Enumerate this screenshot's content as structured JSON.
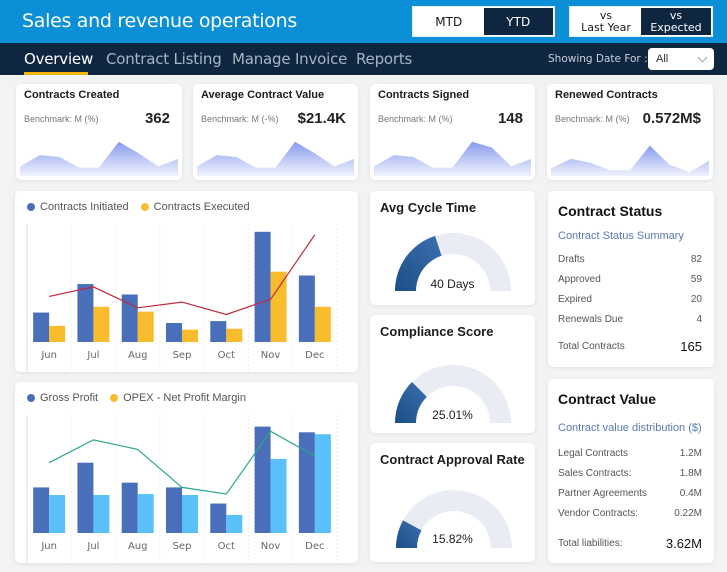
{
  "header": {
    "title": "Sales and revenue operations",
    "period_toggle": [
      {
        "label": "MTD",
        "active": false
      },
      {
        "label": "YTD",
        "active": true
      }
    ],
    "compare_toggle": [
      {
        "label": "vs\nLast Year",
        "active": false
      },
      {
        "label": "vs\nExpected",
        "active": true
      }
    ]
  },
  "nav": {
    "tabs": [
      {
        "label": "Overview",
        "active": true
      },
      {
        "label": "Contract Listing",
        "active": false
      },
      {
        "label": "Manage Invoice",
        "active": false
      },
      {
        "label": "Reports",
        "active": false
      }
    ],
    "date_label": "Showing Date For :",
    "date_select": "All"
  },
  "kpis": [
    {
      "title": "Contracts Created",
      "benchmark": "Benchmark: M (%)",
      "value": "362"
    },
    {
      "title": "Average Contract Value",
      "benchmark": "Benchmark: M (-%)",
      "value": "$21.4K"
    },
    {
      "title": "Contracts Signed",
      "benchmark": "Benchmark: M (%)",
      "value": "148"
    },
    {
      "title": "Renewed Contracts",
      "benchmark": "Benchmark: M (%)",
      "value": "0.572M$"
    }
  ],
  "sparklines": [
    [
      0.25,
      0.55,
      0.5,
      0.22,
      0.22,
      0.9,
      0.6,
      0.25,
      0.45
    ],
    [
      0.25,
      0.55,
      0.5,
      0.22,
      0.22,
      0.9,
      0.6,
      0.25,
      0.45
    ],
    [
      0.25,
      0.55,
      0.5,
      0.22,
      0.22,
      0.9,
      0.75,
      0.25,
      0.45
    ],
    [
      0.2,
      0.45,
      0.35,
      0.15,
      0.15,
      0.8,
      0.3,
      0.1,
      0.4
    ]
  ],
  "chart_data": [
    {
      "type": "bar",
      "title": "",
      "categories": [
        "Jun",
        "Jul",
        "Aug",
        "Sep",
        "Oct",
        "Nov",
        "Dec"
      ],
      "series": [
        {
          "name": "Contracts Initiated",
          "kind": "bar",
          "color": "#4a6fba",
          "values": [
            31,
            61,
            50,
            20,
            22,
            116,
            70
          ]
        },
        {
          "name": "Contracts Executed",
          "kind": "bar",
          "color": "#f9bc2c",
          "values": [
            17,
            37,
            32,
            13,
            14,
            74,
            37
          ]
        },
        {
          "name": "",
          "kind": "line",
          "color": "#c0283a",
          "values": [
            48,
            58,
            36,
            42,
            29,
            45,
            113
          ]
        }
      ],
      "xlabel": "",
      "ylabel": "",
      "ylim": [
        0,
        120
      ],
      "grid": "vertical",
      "legend": "top-left"
    },
    {
      "type": "bar",
      "title": "",
      "categories": [
        "Jun",
        "Jul",
        "Aug",
        "Sep",
        "Oct",
        "Nov",
        "Dec"
      ],
      "series": [
        {
          "name": "Gross Profit",
          "kind": "bar",
          "color": "#4a6fba",
          "values": [
            48,
            74,
            53,
            48,
            31,
            112,
            106
          ]
        },
        {
          "name": "OPEX - Net Profit Margin",
          "kind": "bar",
          "color": "#5bc0fa",
          "legend_color": "#f9bc2c",
          "values": [
            40,
            40,
            41,
            40,
            19,
            78,
            104
          ]
        },
        {
          "name": "",
          "kind": "line",
          "color": "#2aa88a",
          "values": [
            74,
            98,
            88,
            48,
            41,
            107,
            81
          ]
        }
      ],
      "xlabel": "",
      "ylabel": "",
      "ylim": [
        0,
        120
      ],
      "grid": "vertical",
      "legend": "top-left"
    }
  ],
  "gauges": [
    {
      "title": "Avg Cycle Time",
      "value_label": "40 Days",
      "fraction": 0.4
    },
    {
      "title": "Compliance Score",
      "value_label": "25.01%",
      "fraction": 0.2501
    },
    {
      "title": "Contract Approval Rate",
      "value_label": "15.82%",
      "fraction": 0.1582
    }
  ],
  "contract_status": {
    "title": "Contract Status",
    "subtitle": "Contract Status Summary",
    "rows": [
      {
        "label": "Drafts",
        "value": "82"
      },
      {
        "label": "Approved",
        "value": "59"
      },
      {
        "label": "Expired",
        "value": "20"
      },
      {
        "label": "Renewals Due",
        "value": "4"
      }
    ],
    "total_label": "Total Contracts",
    "total_value": "165"
  },
  "contract_value": {
    "title": "Contract Value",
    "subtitle": "Contract value distribution ($)",
    "rows": [
      {
        "label": "Legal Contracts",
        "value": "1.2M"
      },
      {
        "label": "Sales Contracts:",
        "value": "1.8M"
      },
      {
        "label": "Partner Agreements",
        "value": "0.4M"
      },
      {
        "label": "Vendor Contracts:",
        "value": "0.22M"
      }
    ],
    "total_label": "Total liabilities:",
    "total_value": "3.62M"
  },
  "colors": {
    "header_blue": "#0b8fd6",
    "nav_dark": "#0f2640",
    "accent_yellow": "#f4b400",
    "gauge_fill": "#1f5690",
    "gauge_track": "#e9edf3"
  }
}
